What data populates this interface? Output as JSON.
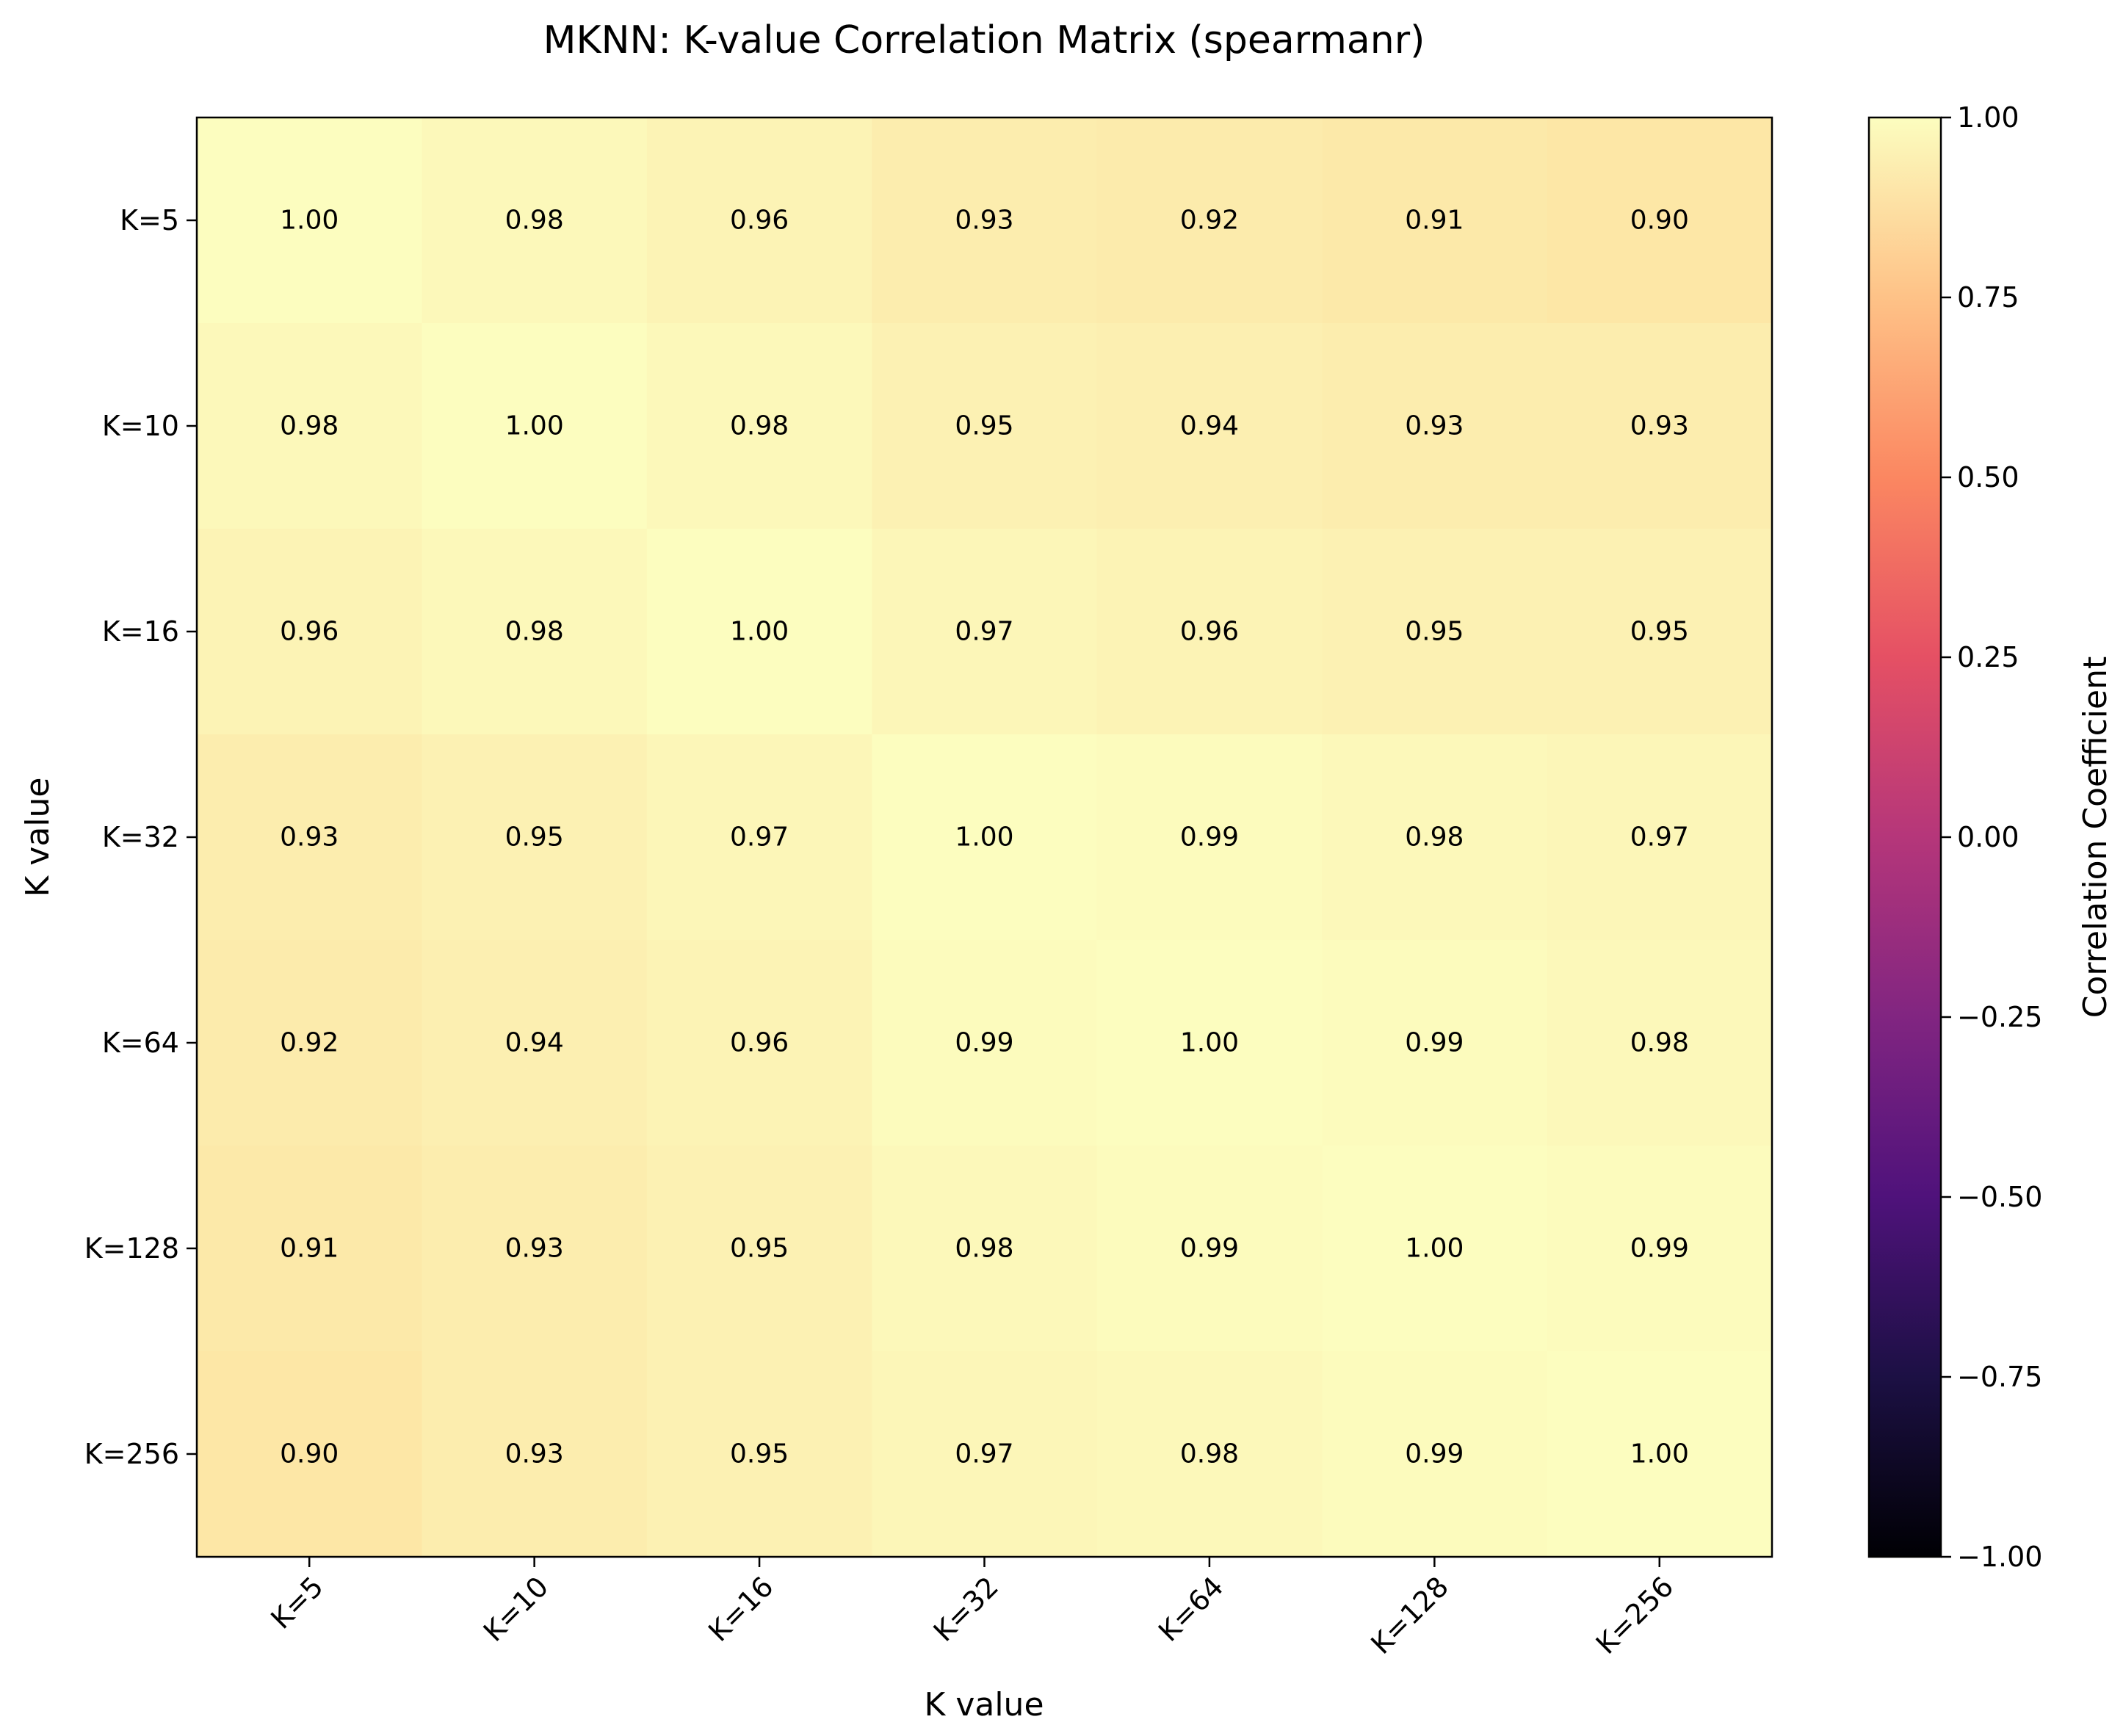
{
  "chart_data": {
    "type": "heatmap",
    "title": "MKNN: K-value Correlation Matrix (spearmanr)",
    "xlabel": "K value",
    "ylabel": "K value",
    "x_categories": [
      "K=5",
      "K=10",
      "K=16",
      "K=32",
      "K=64",
      "K=128",
      "K=256"
    ],
    "y_categories": [
      "K=5",
      "K=10",
      "K=16",
      "K=32",
      "K=64",
      "K=128",
      "K=256"
    ],
    "values": [
      [
        1.0,
        0.98,
        0.96,
        0.93,
        0.92,
        0.91,
        0.9
      ],
      [
        0.98,
        1.0,
        0.98,
        0.95,
        0.94,
        0.93,
        0.93
      ],
      [
        0.96,
        0.98,
        1.0,
        0.97,
        0.96,
        0.95,
        0.95
      ],
      [
        0.93,
        0.95,
        0.97,
        1.0,
        0.99,
        0.98,
        0.97
      ],
      [
        0.92,
        0.94,
        0.96,
        0.99,
        1.0,
        0.99,
        0.98
      ],
      [
        0.91,
        0.93,
        0.95,
        0.98,
        0.99,
        1.0,
        0.99
      ],
      [
        0.9,
        0.93,
        0.95,
        0.97,
        0.98,
        0.99,
        1.0
      ]
    ],
    "cell_labels": [
      [
        "1.00",
        "0.98",
        "0.96",
        "0.93",
        "0.92",
        "0.91",
        "0.90"
      ],
      [
        "0.98",
        "1.00",
        "0.98",
        "0.95",
        "0.94",
        "0.93",
        "0.93"
      ],
      [
        "0.96",
        "0.98",
        "1.00",
        "0.97",
        "0.96",
        "0.95",
        "0.95"
      ],
      [
        "0.93",
        "0.95",
        "0.97",
        "1.00",
        "0.99",
        "0.98",
        "0.97"
      ],
      [
        "0.92",
        "0.94",
        "0.96",
        "0.99",
        "1.00",
        "0.99",
        "0.98"
      ],
      [
        "0.91",
        "0.93",
        "0.95",
        "0.98",
        "0.99",
        "1.00",
        "0.99"
      ],
      [
        "0.90",
        "0.93",
        "0.95",
        "0.97",
        "0.98",
        "0.99",
        "1.00"
      ]
    ],
    "colorbar": {
      "label": "Correlation Coefficient",
      "colormap": "magma",
      "range": [
        -1.0,
        1.0
      ],
      "ticks": [
        1.0,
        0.75,
        0.5,
        0.25,
        0.0,
        -0.25,
        -0.5,
        -0.75,
        -1.0
      ],
      "tick_labels": [
        "1.00",
        "0.75",
        "0.50",
        "0.25",
        "0.00",
        "−0.25",
        "−0.50",
        "−0.75",
        "−1.00"
      ]
    },
    "grid": false,
    "legend": "none"
  }
}
